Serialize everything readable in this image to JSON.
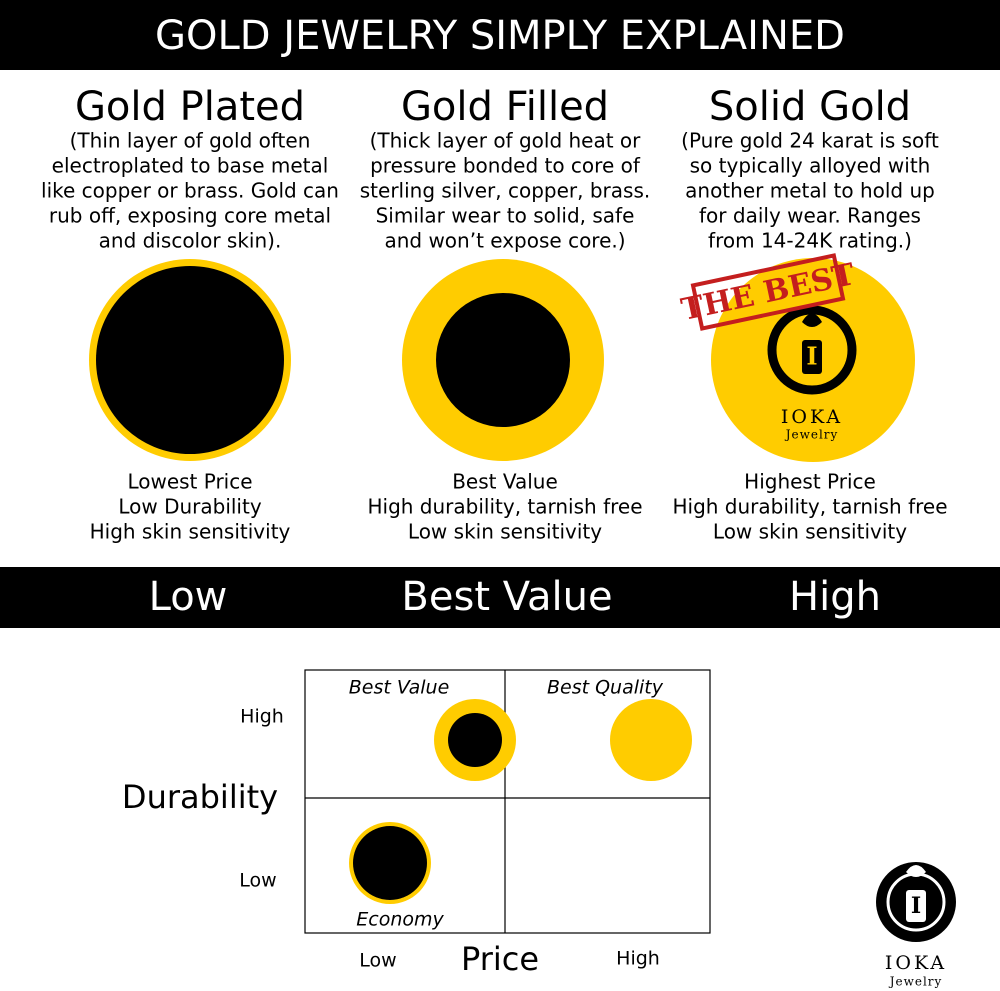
{
  "header": {
    "title": "GOLD JEWELRY SIMPLY EXPLAINED"
  },
  "columns": [
    {
      "title": "Gold Plated",
      "description": [
        "(Thin layer of gold often",
        "electroplated to base metal",
        "like copper or brass. Gold can",
        "rub off, exposing core metal",
        "and discolor skin)."
      ],
      "notes": [
        "Lowest Price",
        "Low Durability",
        "High skin sensitivity"
      ]
    },
    {
      "title": "Gold Filled",
      "description": [
        "(Thick layer of gold heat or",
        "pressure bonded to core of",
        "sterling silver, copper, brass.",
        "Similar wear to solid, safe",
        "and won’t expose core.)"
      ],
      "notes": [
        "Best Value",
        "High durability, tarnish free",
        "Low skin sensitivity"
      ]
    },
    {
      "title": "Solid Gold",
      "description": [
        "(Pure gold 24 karat is soft",
        "so typically alloyed with",
        "another metal to hold up",
        "for daily wear. Ranges",
        "from 14-24K rating.)"
      ],
      "notes": [
        "Highest Price",
        "High durability, tarnish free",
        "Low skin sensitivity"
      ],
      "stamp": "THE BEST"
    }
  ],
  "scale": [
    "Low",
    "Best Value",
    "High"
  ],
  "matrix": {
    "y_label": "Durability",
    "x_label": "Price",
    "y_ticks": [
      "High",
      "Low"
    ],
    "x_ticks": [
      "Low",
      "High"
    ],
    "quadrants": [
      "Best Value",
      "Best Quality",
      "Economy"
    ]
  },
  "logo": {
    "initial": "I",
    "name": "IOKA",
    "sub": "Jewelry"
  }
}
